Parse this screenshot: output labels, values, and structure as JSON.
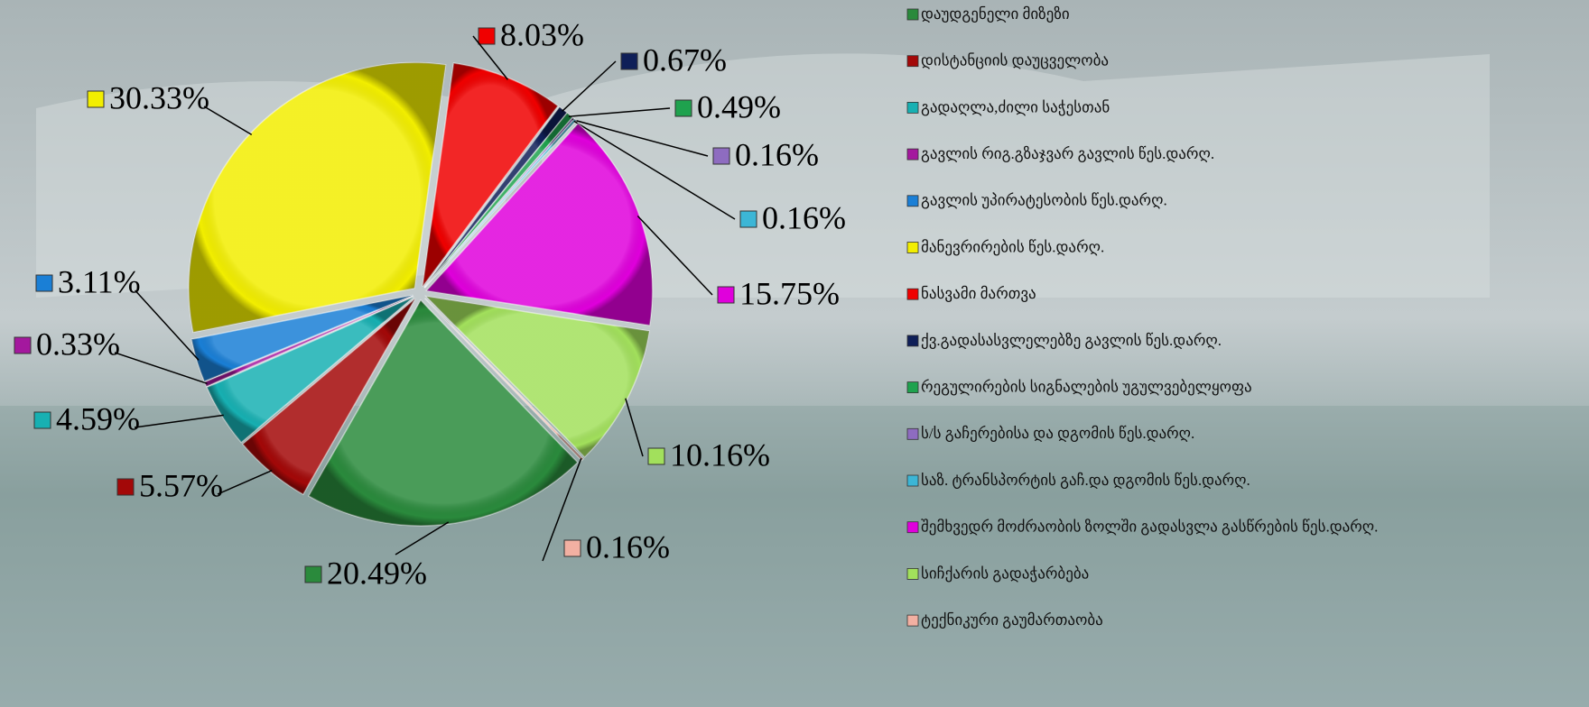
{
  "chart_data": {
    "type": "pie",
    "categories": [
      "დაუდგენელი მიზეზი",
      "დისტანციის დაუცველობა",
      "გადაღლა,ძილი საჭესთან",
      "გავლის რიგ.გზაჯვარ გავლის წეს.დარღ.",
      "გავლის უპირატესობის წეს.დარღ.",
      "მანევრირების წეს.დარღ.",
      "ნასვამი მართვა",
      "ქვ.გადასასვლელებზე გავლის წეს.დარღ.",
      "რეგულირების სიგნალების უგულვებელყოფა",
      "ს/ს გაჩერებისა და დგომის წეს.დარღ.",
      "საზ. ტრანსპორტის გაჩ.და დგომის წეს.დარღ.",
      "შემხვედრ მოძრაობის ზოლში გადასვლა გასწრების წეს.დარღ.",
      "სიჩქარის გადაჭარბება",
      "ტექნიკური გაუმართაობა"
    ],
    "values": [
      20.49,
      5.57,
      4.59,
      0.33,
      3.11,
      30.33,
      8.03,
      0.67,
      0.49,
      0.16,
      0.16,
      15.75,
      10.16,
      0.16
    ],
    "value_labels": [
      "20.49%",
      "5.57%",
      "4.59%",
      "0.33%",
      "3.11%",
      "30.33%",
      "8.03%",
      "0.67%",
      "0.49%",
      "0.16%",
      "0.16%",
      "15.75%",
      "10.16%",
      "0.16%"
    ],
    "colors": [
      "#2a8a3c",
      "#a30808",
      "#17b0b2",
      "#a4189e",
      "#1a7fd6",
      "#f2ee00",
      "#f00000",
      "#0f1f58",
      "#1fa24e",
      "#8e6cc0",
      "#3cb6d6",
      "#e000dc",
      "#a2e05c",
      "#f2b0a2"
    ],
    "legend": "right"
  }
}
